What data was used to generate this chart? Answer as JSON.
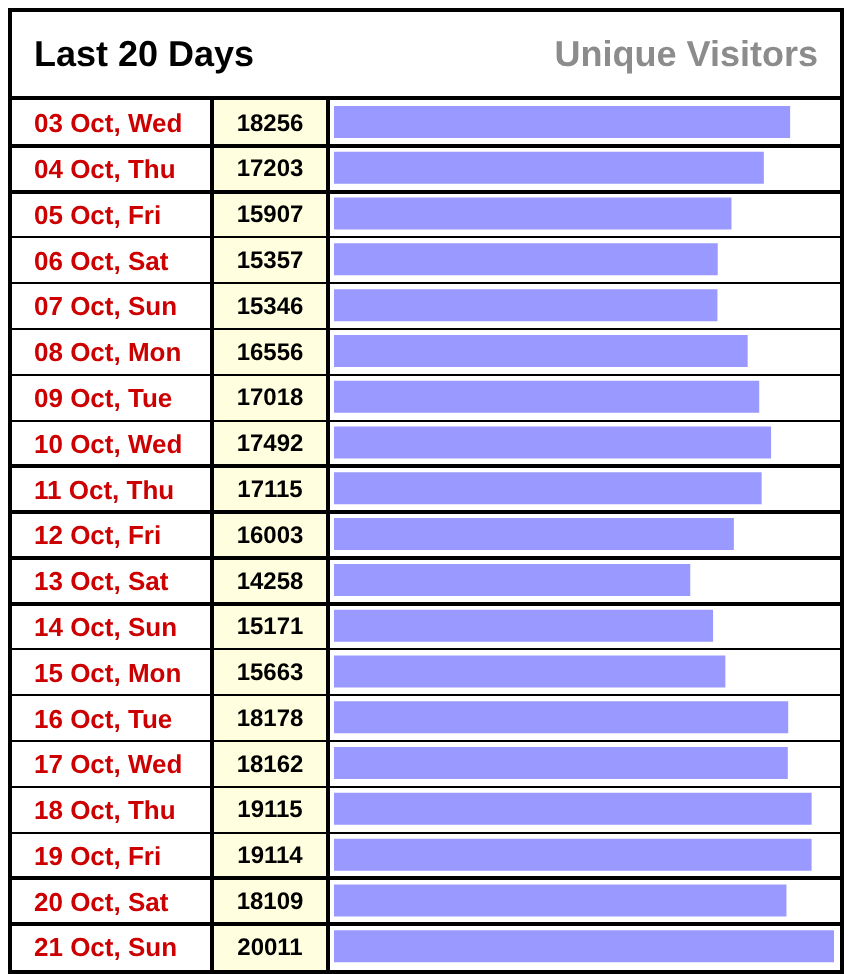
{
  "chart_data": {
    "type": "bar",
    "orientation": "horizontal",
    "title": "Last 20 Days",
    "subtitle": "Unique Visitors",
    "categories": [
      "03 Oct, Wed",
      "04 Oct, Thu",
      "05 Oct, Fri",
      "06 Oct, Sat",
      "07 Oct, Sun",
      "08 Oct, Mon",
      "09 Oct, Tue",
      "10 Oct, Wed",
      "11 Oct, Thu",
      "12 Oct, Fri",
      "13 Oct, Sat",
      "14 Oct, Sun",
      "15 Oct, Mon",
      "16 Oct, Tue",
      "17 Oct, Wed",
      "18 Oct, Thu",
      "19 Oct, Fri",
      "20 Oct, Sat",
      "21 Oct, Sun"
    ],
    "values": [
      18256,
      17203,
      15907,
      15357,
      15346,
      16556,
      17018,
      17492,
      17115,
      16003,
      14258,
      15171,
      15663,
      18178,
      18162,
      19115,
      19114,
      18109,
      20011
    ],
    "color": "#9999ff",
    "data_labels": true,
    "tick_labels": "y"
  }
}
